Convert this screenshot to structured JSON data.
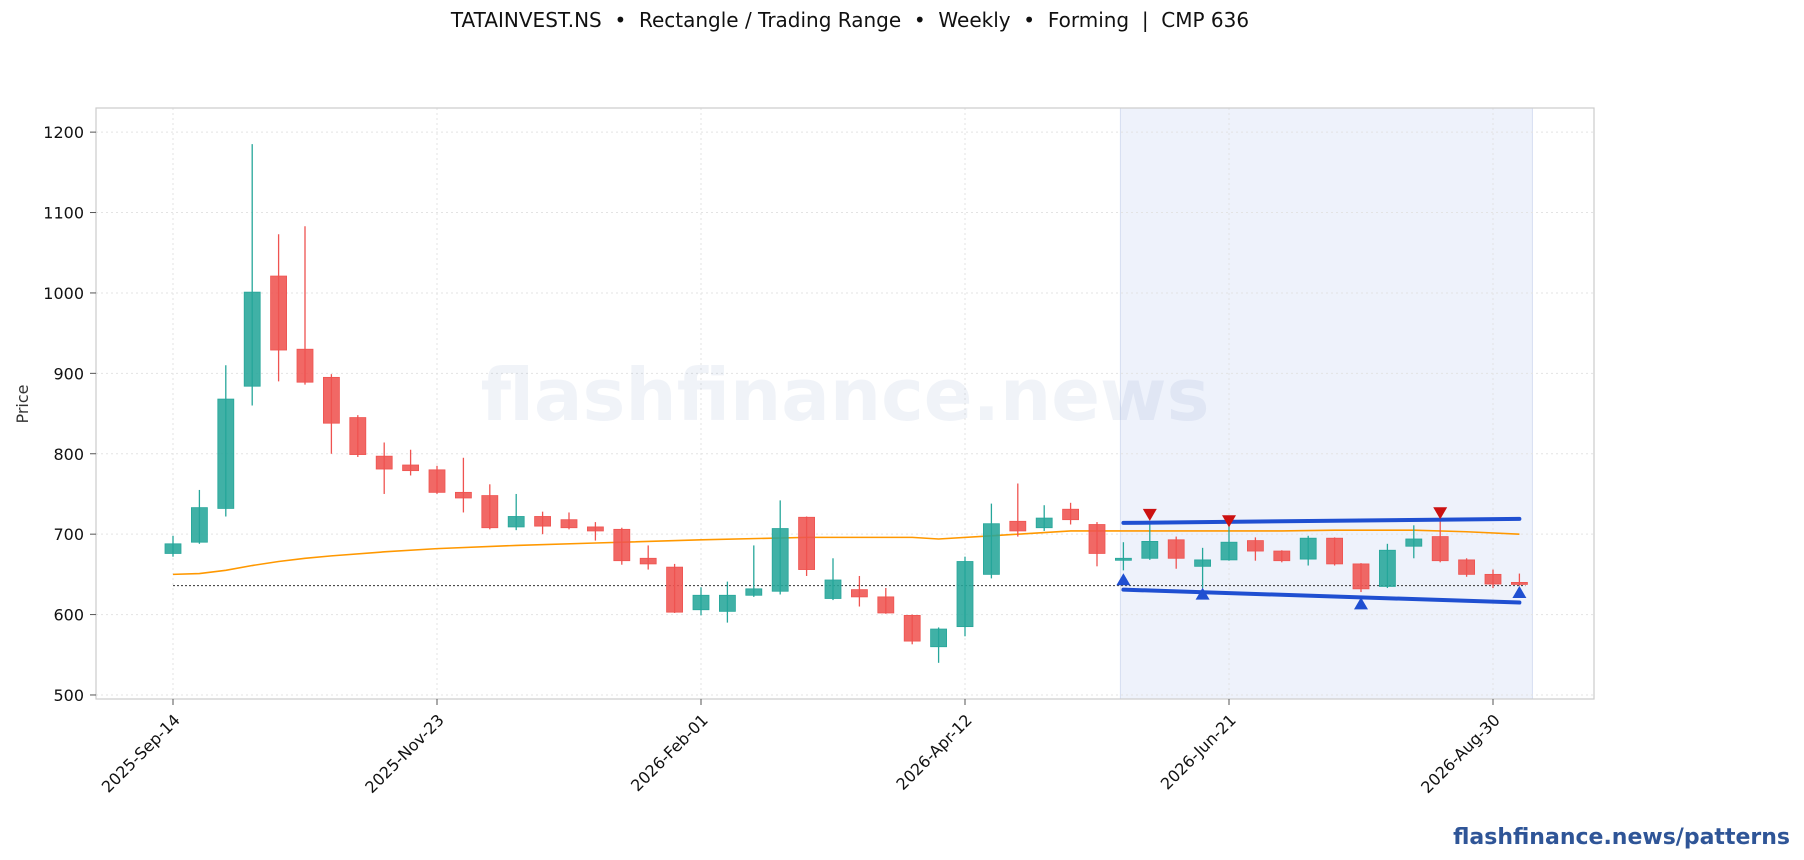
{
  "chart_data": {
    "type": "candlestick",
    "title": "TATAINVEST.NS  •  Rectangle / Trading Range  •  Weekly  •  Forming  |  CMP 636",
    "ylabel": "Price",
    "xlabel": "",
    "ylim": [
      495,
      1230
    ],
    "yticks": [
      500,
      600,
      700,
      800,
      900,
      1000,
      1100,
      1200
    ],
    "xtick_labels": [
      "2025-Sep-14",
      "2025-Nov-23",
      "2026-Feb-01",
      "2026-Apr-12",
      "2026-Jun-21",
      "2026-Aug-30"
    ],
    "xtick_index": [
      0,
      10,
      20,
      30,
      40,
      50
    ],
    "grid": true,
    "watermark": "flashfinance.news",
    "colors": {
      "up": "#26a69a",
      "down": "#ef5350",
      "ma": "#ff9800",
      "pattern": "#1f4fd1",
      "peak": "#cc1111",
      "highlight": "#eef2fb"
    },
    "candles": [
      {
        "date": "2025-Sep-14",
        "o": 676,
        "h": 698,
        "l": 672,
        "c": 688
      },
      {
        "date": "2025-Sep-21",
        "o": 690,
        "h": 755,
        "l": 688,
        "c": 733
      },
      {
        "date": "2025-Sep-28",
        "o": 732,
        "h": 910,
        "l": 722,
        "c": 868
      },
      {
        "date": "2025-Oct-05",
        "o": 884,
        "h": 1185,
        "l": 860,
        "c": 1001
      },
      {
        "date": "2025-Oct-12",
        "o": 1021,
        "h": 1073,
        "l": 890,
        "c": 929
      },
      {
        "date": "2025-Oct-19",
        "o": 930,
        "h": 1083,
        "l": 886,
        "c": 889
      },
      {
        "date": "2025-Oct-26",
        "o": 895,
        "h": 899,
        "l": 800,
        "c": 838
      },
      {
        "date": "2025-Nov-02",
        "o": 845,
        "h": 848,
        "l": 796,
        "c": 799
      },
      {
        "date": "2025-Nov-09",
        "o": 797,
        "h": 814,
        "l": 750,
        "c": 781
      },
      {
        "date": "2025-Nov-16",
        "o": 786,
        "h": 805,
        "l": 773,
        "c": 779
      },
      {
        "date": "2025-Nov-23",
        "o": 780,
        "h": 785,
        "l": 750,
        "c": 752
      },
      {
        "date": "2025-Dec-02",
        "o": 752,
        "h": 795,
        "l": 727,
        "c": 745
      },
      {
        "date": "2025-Dec-07",
        "o": 748,
        "h": 762,
        "l": 706,
        "c": 708
      },
      {
        "date": "2025-Dec-14",
        "o": 709,
        "h": 750,
        "l": 705,
        "c": 722
      },
      {
        "date": "2025-Dec-21",
        "o": 722,
        "h": 728,
        "l": 700,
        "c": 710
      },
      {
        "date": "2025-Dec-28",
        "o": 718,
        "h": 727,
        "l": 706,
        "c": 708
      },
      {
        "date": "2026-Jan-04",
        "o": 709,
        "h": 715,
        "l": 692,
        "c": 704
      },
      {
        "date": "2026-Jan-11",
        "o": 706,
        "h": 708,
        "l": 662,
        "c": 667
      },
      {
        "date": "2026-Jan-18",
        "o": 670,
        "h": 686,
        "l": 656,
        "c": 663
      },
      {
        "date": "2026-Jan-25",
        "o": 659,
        "h": 663,
        "l": 602,
        "c": 603
      },
      {
        "date": "2026-Feb-01",
        "o": 606,
        "h": 634,
        "l": 599,
        "c": 624
      },
      {
        "date": "2026-Feb-08",
        "o": 604,
        "h": 641,
        "l": 590,
        "c": 624
      },
      {
        "date": "2026-Feb-15",
        "o": 624,
        "h": 686,
        "l": 622,
        "c": 632
      },
      {
        "date": "2026-Feb-22",
        "o": 629,
        "h": 742,
        "l": 625,
        "c": 707
      },
      {
        "date": "2026-Mar-01",
        "o": 721,
        "h": 722,
        "l": 648,
        "c": 656
      },
      {
        "date": "2026-Mar-08",
        "o": 620,
        "h": 670,
        "l": 618,
        "c": 643
      },
      {
        "date": "2026-Mar-15",
        "o": 631,
        "h": 648,
        "l": 610,
        "c": 622
      },
      {
        "date": "2026-Mar-22",
        "o": 622,
        "h": 633,
        "l": 601,
        "c": 602
      },
      {
        "date": "2026-Mar-29",
        "o": 599,
        "h": 600,
        "l": 563,
        "c": 567
      },
      {
        "date": "2026-Apr-05",
        "o": 560,
        "h": 584,
        "l": 540,
        "c": 582
      },
      {
        "date": "2026-Apr-12",
        "o": 585,
        "h": 672,
        "l": 573,
        "c": 666
      },
      {
        "date": "2026-Apr-19",
        "o": 650,
        "h": 738,
        "l": 645,
        "c": 713
      },
      {
        "date": "2026-Apr-26",
        "o": 716,
        "h": 763,
        "l": 697,
        "c": 704
      },
      {
        "date": "2026-May-03",
        "o": 708,
        "h": 736,
        "l": 704,
        "c": 720
      },
      {
        "date": "2026-May-10",
        "o": 731,
        "h": 739,
        "l": 712,
        "c": 718
      },
      {
        "date": "2026-May-17",
        "o": 712,
        "h": 715,
        "l": 660,
        "c": 676
      },
      {
        "date": "2026-May-24",
        "o": 668,
        "h": 690,
        "l": 655,
        "c": 670
      },
      {
        "date": "2026-May-31",
        "o": 670,
        "h": 715,
        "l": 668,
        "c": 691
      },
      {
        "date": "2026-Jun-07",
        "o": 693,
        "h": 697,
        "l": 657,
        "c": 670
      },
      {
        "date": "2026-Jun-14",
        "o": 660,
        "h": 683,
        "l": 633,
        "c": 668
      },
      {
        "date": "2026-Jun-21",
        "o": 668,
        "h": 716,
        "l": 667,
        "c": 690
      },
      {
        "date": "2026-Jun-28",
        "o": 692,
        "h": 696,
        "l": 667,
        "c": 679
      },
      {
        "date": "2026-Jul-05",
        "o": 679,
        "h": 680,
        "l": 665,
        "c": 667
      },
      {
        "date": "2026-Jul-12",
        "o": 669,
        "h": 698,
        "l": 661,
        "c": 695
      },
      {
        "date": "2026-Jul-19",
        "o": 695,
        "h": 696,
        "l": 661,
        "c": 663
      },
      {
        "date": "2026-Jul-26",
        "o": 663,
        "h": 664,
        "l": 628,
        "c": 632
      },
      {
        "date": "2026-Aug-02",
        "o": 635,
        "h": 688,
        "l": 633,
        "c": 680
      },
      {
        "date": "2026-Aug-09",
        "o": 685,
        "h": 711,
        "l": 670,
        "c": 694
      },
      {
        "date": "2026-Aug-16",
        "o": 697,
        "h": 719,
        "l": 665,
        "c": 667
      },
      {
        "date": "2026-Aug-23",
        "o": 668,
        "h": 670,
        "l": 647,
        "c": 650
      },
      {
        "date": "2026-Aug-30",
        "o": 650,
        "h": 656,
        "l": 633,
        "c": 638
      },
      {
        "date": "2026-Sep-06",
        "o": 640,
        "h": 651,
        "l": 636,
        "c": 639
      }
    ],
    "moving_average": [
      {
        "i": 0,
        "v": 650
      },
      {
        "i": 1,
        "v": 651
      },
      {
        "i": 2,
        "v": 655
      },
      {
        "i": 3,
        "v": 661
      },
      {
        "i": 4,
        "v": 666
      },
      {
        "i": 5,
        "v": 670
      },
      {
        "i": 6,
        "v": 673
      },
      {
        "i": 8,
        "v": 678
      },
      {
        "i": 10,
        "v": 682
      },
      {
        "i": 13,
        "v": 686
      },
      {
        "i": 16,
        "v": 689
      },
      {
        "i": 20,
        "v": 693
      },
      {
        "i": 24,
        "v": 696
      },
      {
        "i": 28,
        "v": 696
      },
      {
        "i": 29,
        "v": 694
      },
      {
        "i": 31,
        "v": 698
      },
      {
        "i": 34,
        "v": 704
      },
      {
        "i": 38,
        "v": 704
      },
      {
        "i": 42,
        "v": 704
      },
      {
        "i": 44,
        "v": 705
      },
      {
        "i": 47,
        "v": 705
      },
      {
        "i": 49,
        "v": 703
      },
      {
        "i": 51,
        "v": 700
      }
    ],
    "cmp_line": 636,
    "pattern": {
      "name": "Rectangle / Trading Range",
      "start_index": 36,
      "end_index": 51,
      "upper_line": {
        "from": {
          "i": 36,
          "v": 714
        },
        "to": {
          "i": 51,
          "v": 719
        }
      },
      "lower_line": {
        "from": {
          "i": 36,
          "v": 631
        },
        "to": {
          "i": 51,
          "v": 615
        }
      },
      "peaks": [
        {
          "i": 37,
          "v": 724
        },
        {
          "i": 40,
          "v": 716
        },
        {
          "i": 48,
          "v": 726
        }
      ],
      "troughs": [
        {
          "i": 36,
          "v": 644
        },
        {
          "i": 39,
          "v": 626
        },
        {
          "i": 45,
          "v": 614
        },
        {
          "i": 51,
          "v": 628
        }
      ]
    }
  },
  "footer": {
    "brand": "flashfinance.news/patterns"
  }
}
